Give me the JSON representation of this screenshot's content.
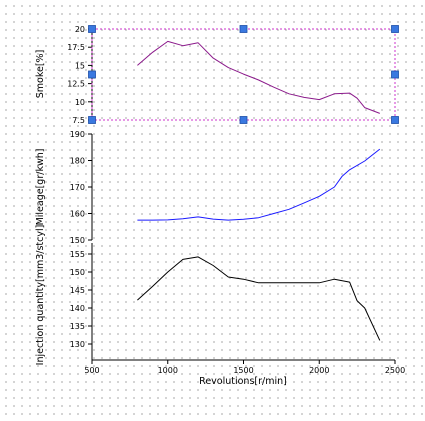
{
  "chart_data": [
    {
      "type": "line",
      "ylabel": "Smoke[%]",
      "ylim": [
        7.5,
        20
      ],
      "yticks": [
        "7.5",
        "10",
        "12.5",
        "15",
        "17.5",
        "20"
      ],
      "selected": true,
      "series": [
        {
          "color": "#8b1a8b",
          "x": [
            800,
            900,
            1000,
            1100,
            1200,
            1300,
            1400,
            1500,
            1600,
            1700,
            1800,
            1900,
            2000,
            2100,
            2200,
            2250,
            2300,
            2400
          ],
          "y": [
            15.0,
            16.8,
            18.3,
            17.7,
            18.1,
            16.0,
            14.7,
            13.8,
            13.0,
            12.0,
            11.1,
            10.6,
            10.3,
            11.1,
            11.2,
            10.5,
            9.2,
            8.4
          ]
        }
      ]
    },
    {
      "type": "line",
      "ylabel": "Mileage[gr/kwh]",
      "ylim": [
        150,
        190
      ],
      "yticks": [
        "150",
        "160",
        "170",
        "180",
        "190"
      ],
      "series": [
        {
          "color": "#1a1aff",
          "x": [
            800,
            900,
            1000,
            1100,
            1200,
            1300,
            1400,
            1500,
            1600,
            1700,
            1800,
            1900,
            2000,
            2100,
            2150,
            2200,
            2300,
            2400
          ],
          "y": [
            157.5,
            157.5,
            157.6,
            158.0,
            158.7,
            157.9,
            157.5,
            157.8,
            158.4,
            160.0,
            161.6,
            164.0,
            166.5,
            170.0,
            174.0,
            176.5,
            179.8,
            184.3
          ]
        }
      ]
    },
    {
      "type": "line",
      "ylabel": "Injection quantity[mm3/stcyl]",
      "xlabel": "Revolutions[r/min]",
      "ylim": [
        130,
        155
      ],
      "xlim": [
        500,
        2500
      ],
      "yticks": [
        "130",
        "135",
        "140",
        "145",
        "150",
        "155"
      ],
      "xticks": [
        "500",
        "1000",
        "1500",
        "2000",
        "2500"
      ],
      "series": [
        {
          "color": "#000000",
          "x": [
            800,
            900,
            1000,
            1100,
            1200,
            1300,
            1400,
            1500,
            1600,
            1700,
            1800,
            1900,
            2000,
            2100,
            2200,
            2250,
            2300,
            2400
          ],
          "y": [
            142.2,
            146.0,
            150.0,
            153.5,
            154.2,
            151.8,
            148.6,
            148.0,
            147.0,
            147.0,
            147.0,
            147.0,
            147.0,
            148.0,
            147.2,
            142.0,
            140.0,
            131.0
          ]
        }
      ]
    }
  ]
}
